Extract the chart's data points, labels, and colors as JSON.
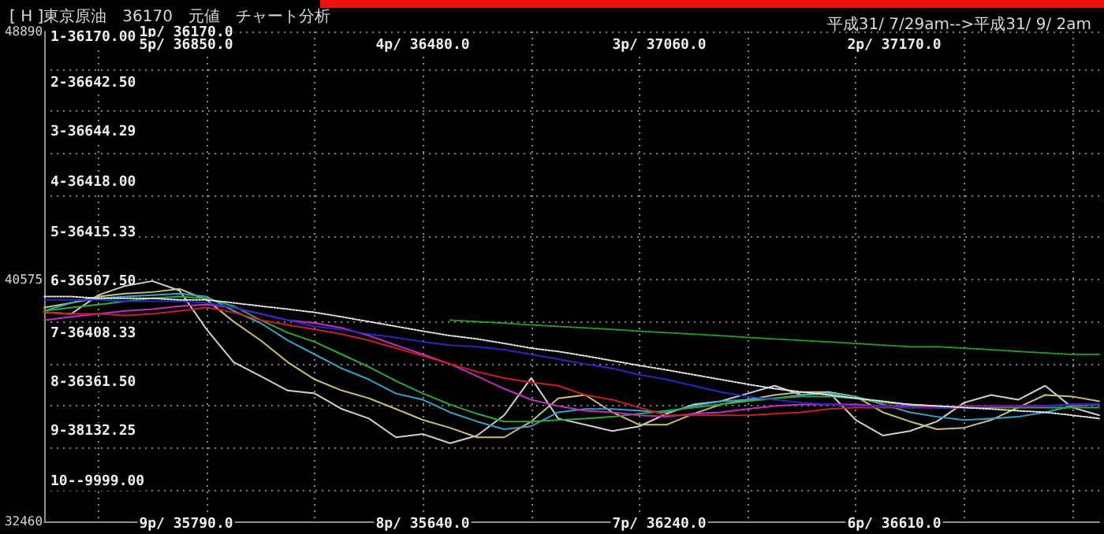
{
  "chart_data": {
    "type": "line",
    "title": "[ H ]東京原油　36170　元値　チャート分析",
    "subtitle": "平成31/ 7/29am-->平成31/ 9/ 2am",
    "categories": [
      null,
      null,
      null,
      null,
      null,
      null,
      null,
      null,
      null,
      null,
      null,
      null,
      null,
      null,
      null,
      null,
      null,
      null,
      null,
      null,
      null,
      null,
      null,
      null,
      null,
      null,
      null,
      null,
      null,
      null,
      null,
      null,
      null,
      null,
      null,
      null,
      null,
      null,
      null,
      null
    ],
    "ylim": [
      32460,
      48890
    ],
    "yticks": [
      48890,
      {
        "value": 47630,
        "label": null
      },
      {
        "value": 46220,
        "label": null
      },
      {
        "value": 44810,
        "label": null
      },
      {
        "value": 43400,
        "label": null
      },
      {
        "value": 41990,
        "label": null
      },
      40575,
      {
        "value": 39160,
        "label": null
      },
      {
        "value": 37750,
        "label": null
      },
      {
        "value": 36340,
        "label": null
      },
      {
        "value": 34930,
        "label": null
      },
      {
        "value": 33520,
        "label": null
      },
      32460
    ],
    "grid": true,
    "marker": "none",
    "series": [
      {
        "color": "#d0d0d0",
        "values": [
          39470,
          39420,
          40050,
          40360,
          40520,
          40200,
          38900,
          37800,
          37330,
          36850,
          36750,
          36230,
          35910,
          35280,
          35390,
          35080,
          35340,
          36020,
          37270,
          35910,
          35700,
          35490,
          35650,
          36070,
          36380,
          36490,
          36750,
          37010,
          36700,
          36800,
          35860,
          35340,
          35490,
          35810,
          36440,
          36700,
          36540,
          37010,
          36280,
          36020
        ]
      },
      {
        "color": "#c8c07a",
        "values": [
          39630,
          39790,
          40000,
          40100,
          40150,
          40260,
          39890,
          39160,
          38530,
          37800,
          37220,
          36850,
          36590,
          36230,
          35860,
          35600,
          35280,
          35280,
          35810,
          36590,
          36700,
          36120,
          35700,
          35700,
          36070,
          36380,
          36540,
          36700,
          36800,
          36800,
          36650,
          36120,
          35810,
          35550,
          35600,
          35860,
          36280,
          36700,
          36650,
          36490
        ]
      },
      {
        "color": "#3aa0c8",
        "values": [
          39520,
          39790,
          39940,
          40000,
          40050,
          40100,
          40000,
          39520,
          39110,
          38530,
          38060,
          37590,
          37220,
          36750,
          36540,
          36120,
          35810,
          35550,
          35650,
          36120,
          36230,
          36230,
          36170,
          36120,
          36330,
          36490,
          36540,
          36590,
          36700,
          36750,
          36650,
          36380,
          36120,
          35970,
          35860,
          35910,
          35970,
          36120,
          36330,
          36380
        ]
      },
      {
        "color": "#30a838",
        "values": [
          39520,
          39630,
          39730,
          39840,
          39940,
          40000,
          39940,
          39680,
          39210,
          38790,
          38480,
          38060,
          37640,
          37170,
          36750,
          36380,
          36070,
          35810,
          35810,
          35860,
          35910,
          35970,
          36070,
          36170,
          36280,
          36380,
          36490,
          36590,
          36650,
          36650,
          36590,
          36440,
          36380,
          36330,
          36280,
          36280,
          36280,
          36280,
          36280,
          36280
        ]
      },
      {
        "color": "#c030c0",
        "values": [
          39210,
          39320,
          39420,
          39520,
          39580,
          39680,
          39730,
          39630,
          39420,
          39210,
          39110,
          38950,
          38690,
          38370,
          38060,
          37740,
          37330,
          36910,
          36540,
          36330,
          36170,
          36120,
          36020,
          35970,
          36070,
          36120,
          36230,
          36330,
          36380,
          36380,
          36380,
          36330,
          36330,
          36280,
          36280,
          36330,
          36330,
          36330,
          36380,
          36380
        ]
      },
      {
        "color": "#c82020",
        "values": [
          39470,
          39420,
          39420,
          39370,
          39420,
          39520,
          39630,
          39470,
          39210,
          39050,
          38900,
          38740,
          38530,
          38270,
          38010,
          37740,
          37480,
          37270,
          37120,
          37010,
          36700,
          36540,
          36280,
          36020,
          36020,
          36020,
          36020,
          36070,
          36120,
          36230,
          36280,
          36280,
          36280,
          36280,
          36330,
          36330,
          36330,
          null,
          null,
          null
        ]
      },
      {
        "color": "#2828c0",
        "values": [
          39890,
          39890,
          39890,
          39840,
          39840,
          39840,
          39790,
          39630,
          39420,
          39210,
          39000,
          38900,
          38740,
          38630,
          38480,
          38370,
          38320,
          38220,
          38060,
          37900,
          37740,
          37590,
          37380,
          37220,
          37010,
          36800,
          36650,
          36540,
          36440,
          36380,
          36330,
          36330,
          36280,
          36280,
          36280,
          36330,
          36330,
          36330,
          36380,
          36380
        ]
      },
      {
        "color": "#e8e8e8",
        "line_style": "dotted",
        "values": [
          40000,
          40000,
          39940,
          39940,
          39940,
          39890,
          39890,
          39790,
          39680,
          39580,
          39470,
          39320,
          39160,
          39000,
          38840,
          38690,
          38580,
          38430,
          38270,
          38160,
          38010,
          37850,
          37690,
          37540,
          37380,
          37220,
          37060,
          36910,
          36800,
          36700,
          36590,
          36490,
          36380,
          36330,
          36280,
          36230,
          36170,
          36120,
          36020,
          35910
        ]
      },
      {
        "color": "#28a028",
        "line_style": "dotted",
        "values": [
          null,
          null,
          null,
          null,
          null,
          null,
          null,
          null,
          null,
          null,
          null,
          null,
          null,
          null,
          null,
          39210,
          39160,
          39110,
          39050,
          39000,
          38950,
          38900,
          38840,
          38790,
          38740,
          38690,
          38630,
          38580,
          38530,
          38480,
          38430,
          38370,
          38320,
          38320,
          38270,
          38220,
          38160,
          38110,
          38060,
          38060
        ]
      }
    ],
    "annotations": [
      "1-36170.00",
      "2-36642.50",
      "3-36644.29",
      "4-36418.00",
      "5-36415.33",
      "6-36507.50",
      "7-36408.33",
      "8-36361.50",
      "9-38132.25",
      "10--9999.00",
      "1p/ 36170.0",
      "5p/ 36850.0",
      "4p/ 36480.0",
      "3p/ 37060.0",
      "2p/ 37170.0",
      "9p/ 35790.0",
      "8p/ 35640.0",
      "7p/ 36240.0",
      "6p/ 36610.0"
    ]
  }
}
